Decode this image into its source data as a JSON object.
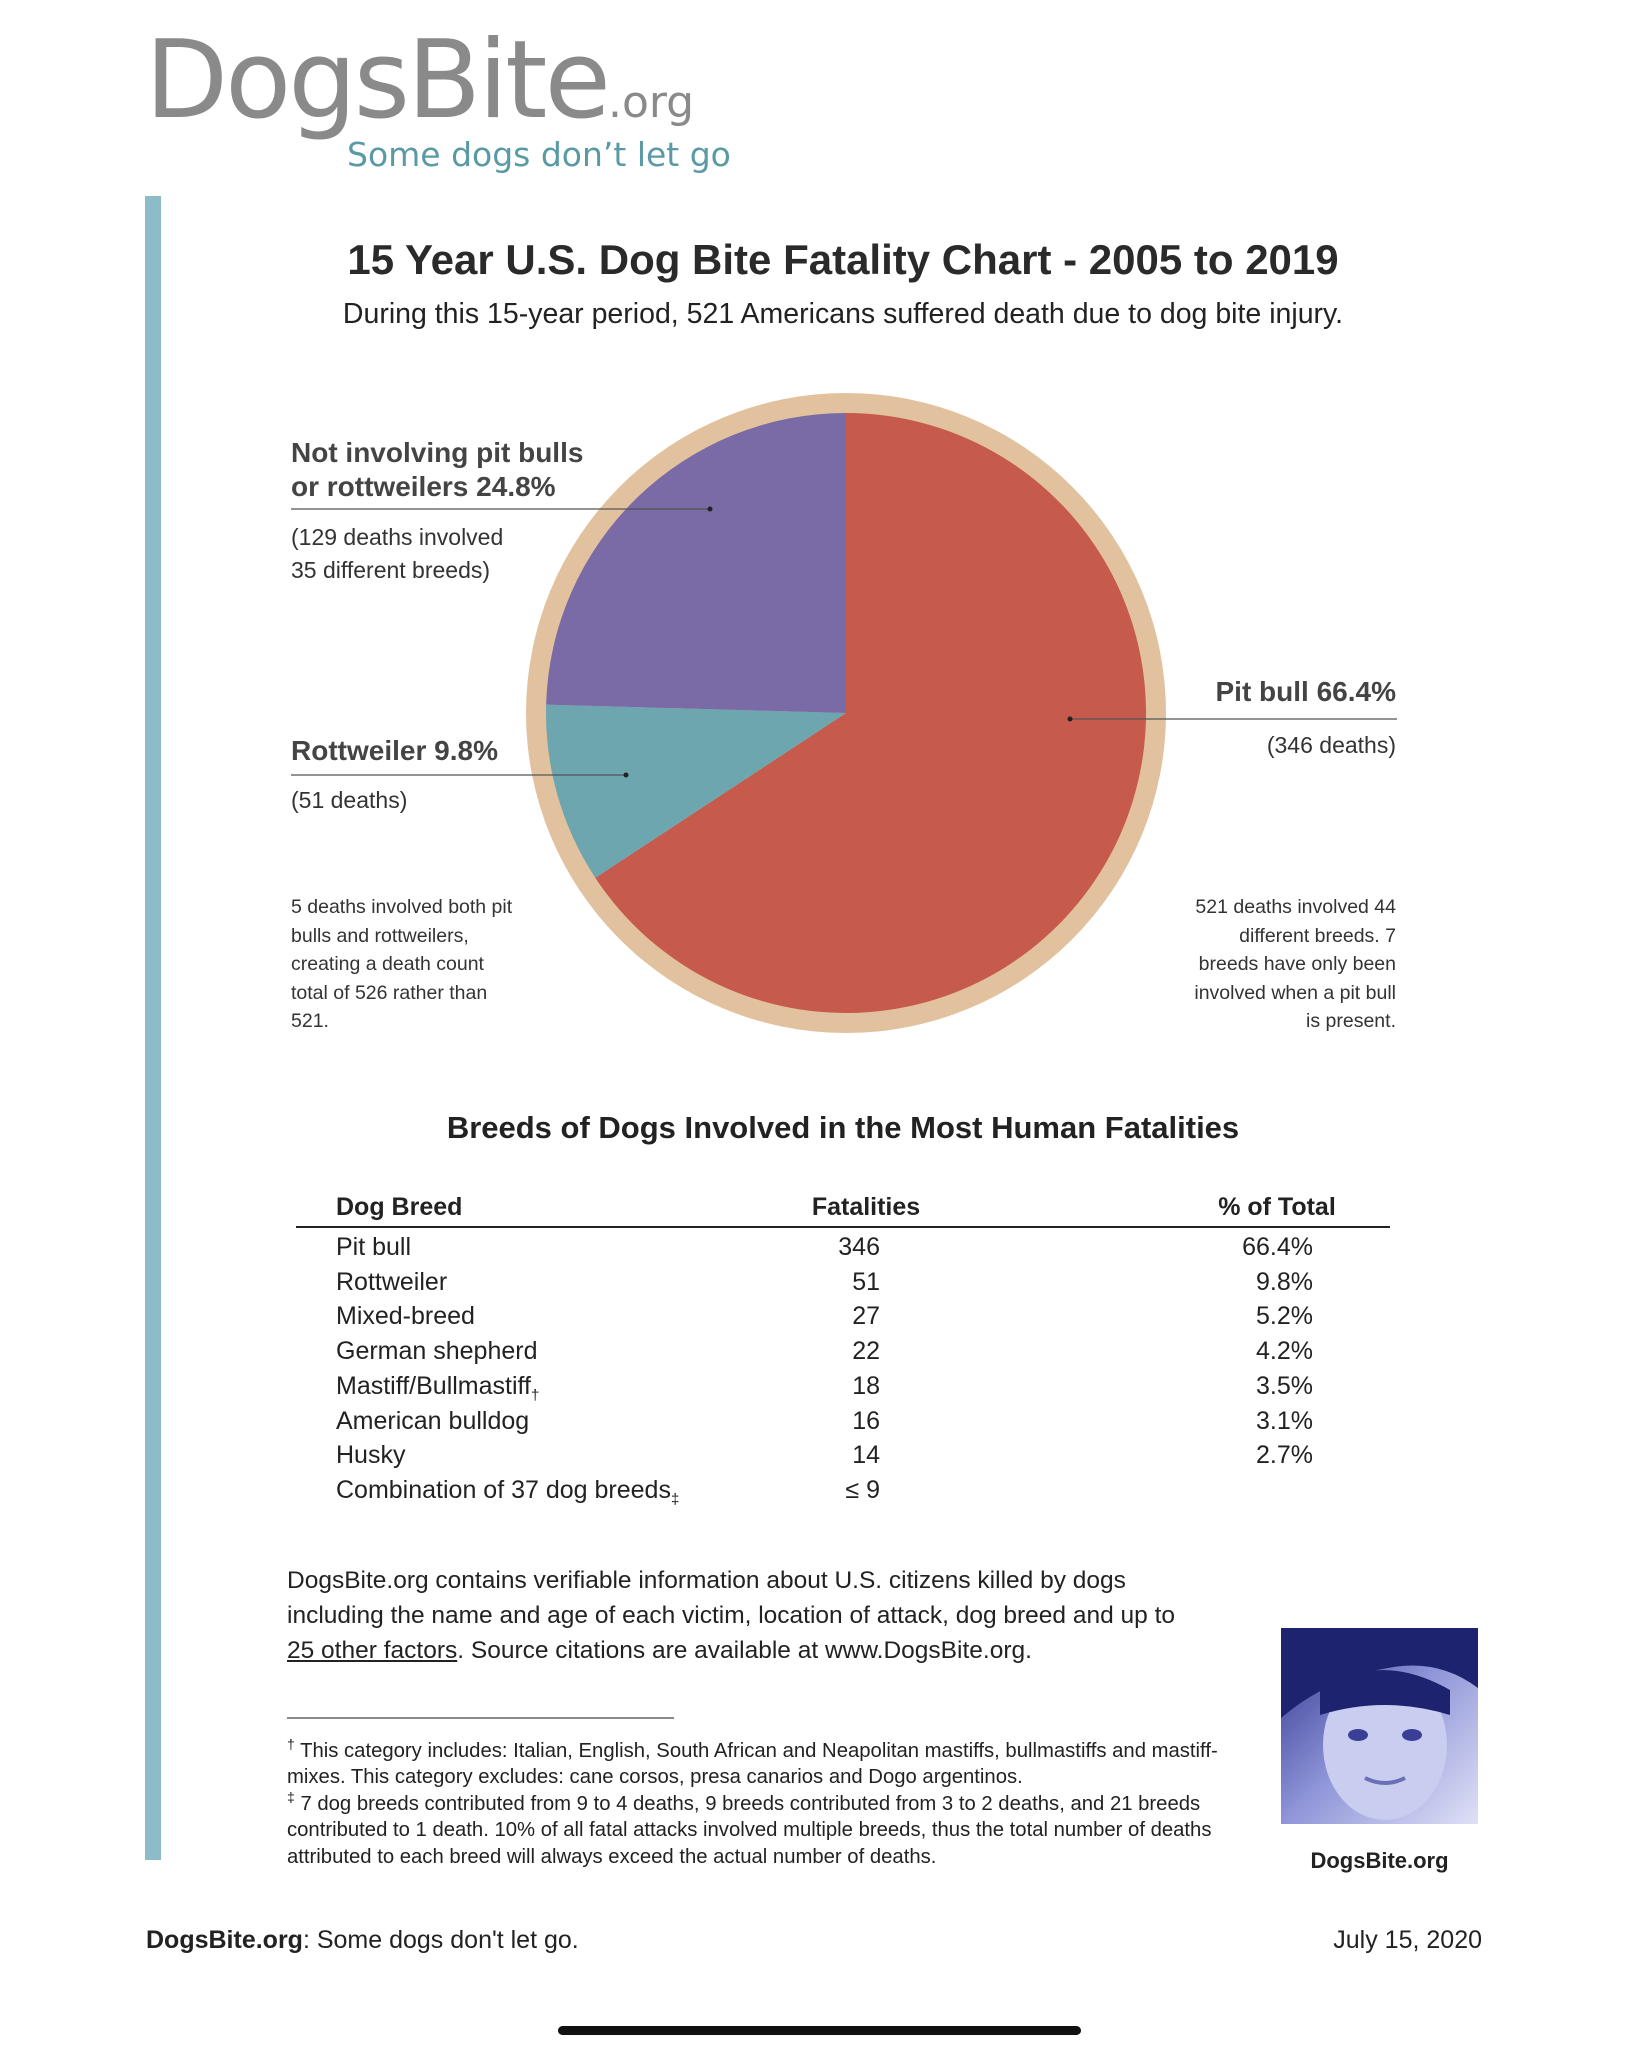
{
  "header": {
    "logo": "DogsBite",
    "logo_suffix": ".org",
    "tagline": "Some dogs don’t let go"
  },
  "chart_data": {
    "type": "pie",
    "title": "15 Year U.S. Dog Bite Fatality Chart - 2005 to 2019",
    "subtitle": "During this 15-year period, 521 Americans suffered death due to dog bite injury.",
    "categories": [
      "Pit bull",
      "Rottweiler",
      "Not involving pit bulls or rottweilers"
    ],
    "values": [
      66.4,
      9.8,
      24.8
    ],
    "value_labels": [
      "66.4%",
      "9.8%",
      "24.8%"
    ],
    "colors": [
      "#c65a4c",
      "#6ea6b0",
      "#7a6aa6"
    ],
    "details": [
      "(346 deaths)",
      "(51 deaths)",
      "(129 deaths involved 35 different breeds)"
    ],
    "notes": [
      "5 deaths involved both pit bulls and rottweilers, creating a death count total of 526 rather than 521.",
      "521 deaths involved 44 different breeds. 7 breeds have only been involved when a pit bull is present."
    ]
  },
  "table": {
    "title": "Breeds of Dogs Involved in the Most Human Fatalities",
    "columns": [
      "Dog Breed",
      "Fatalities",
      "% of Total"
    ],
    "rows": [
      {
        "breed": "Pit bull",
        "fatalities": "346",
        "percent": "66.4%"
      },
      {
        "breed": "Rottweiler",
        "fatalities": "51",
        "percent": "9.8%"
      },
      {
        "breed": "Mixed-breed",
        "fatalities": "27",
        "percent": "5.2%"
      },
      {
        "breed": "German shepherd",
        "fatalities": "22",
        "percent": "4.2%"
      },
      {
        "breed": "Mastiff/Bullmastiff",
        "mark": "†",
        "fatalities": "18",
        "percent": "3.5%"
      },
      {
        "breed": "American bulldog",
        "fatalities": "16",
        "percent": "3.1%"
      },
      {
        "breed": "Husky",
        "fatalities": "14",
        "percent": "2.7%"
      },
      {
        "breed": "Combination of 37 dog breeds",
        "mark": "‡",
        "fatalities": "≤ 9"
      }
    ]
  },
  "body": [
    "DogsBite.org contains verifiable information about U.S. citizens killed by dogs including the name and age of each victim, location of attack, dog breed and up to ",
    "25 other factors",
    ". Source citations are available at www.DogsBite.org."
  ],
  "footnotes": [
    {
      "mark": "†",
      "text": "This category includes: Italian, English, South African and Neapolitan mastiffs, bullmastiffs and mastiff-mixes. This category excludes: cane corsos, presa canarios and Dogo argentinos."
    },
    {
      "mark": "‡",
      "text": "7 dog breeds contributed from 9 to 4 deaths, 9 breeds contributed from 3 to 2 deaths, and 21 breeds contributed to 1 death. 10% of all fatal attacks involved multiple breeds, thus the total number of deaths attributed to each breed will always exceed the actual number of deaths."
    }
  ],
  "photo_caption": "DogsBite.org",
  "footer": {
    "brand": "DogsBite.org",
    "text": ": Some dogs don't let go.",
    "date": "July 15, 2020"
  }
}
